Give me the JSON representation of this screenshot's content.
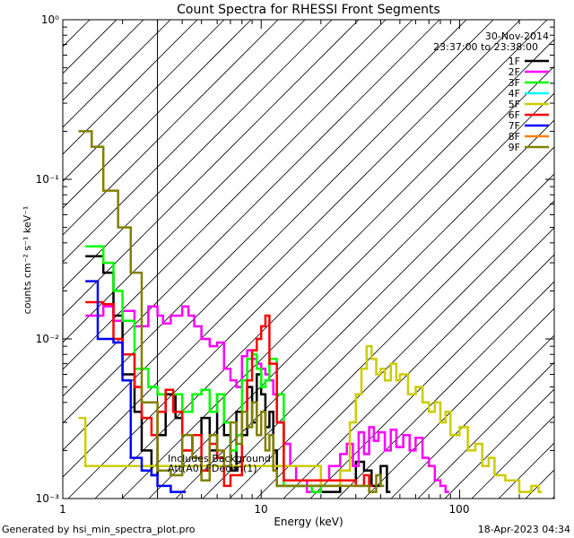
{
  "chart_data": {
    "type": "line",
    "title": "Count Spectra for RHESSI Front Segments",
    "xlabel": "Energy (keV)",
    "ylabel": "counts cm⁻² s⁻¹ keV⁻¹",
    "xscale": "log",
    "yscale": "log",
    "xlim": [
      1,
      300
    ],
    "ylim": [
      0.001,
      1
    ],
    "x_ticks": [
      "1",
      "10",
      "100"
    ],
    "y_ticks": [
      "10⁻³",
      "10⁻²",
      "10⁻¹",
      "10⁰"
    ],
    "legend_position": "top-right",
    "date": "30-Nov-2014",
    "time_range": "23:37:00 to 23:38:00",
    "annotation_lines": [
      "Includes Background",
      "Att(A0) FDecim(1)"
    ],
    "hatched_region": [
      1,
      3
    ],
    "series": [
      {
        "name": "1F",
        "color": "#000000",
        "points": [
          [
            1.3,
            0.033
          ],
          [
            1.6,
            0.026
          ],
          [
            1.8,
            0.014
          ],
          [
            2.0,
            0.006
          ],
          [
            2.3,
            0.0035
          ],
          [
            2.5,
            0.002
          ],
          [
            2.8,
            0.0014
          ],
          [
            3.0,
            0.0025
          ],
          [
            3.3,
            0.0045
          ],
          [
            3.7,
            0.0032
          ],
          [
            4.0,
            0.002
          ],
          [
            4.5,
            0.0025
          ],
          [
            5.0,
            0.0032
          ],
          [
            5.5,
            0.002
          ],
          [
            6.0,
            0.0045
          ],
          [
            6.5,
            0.0025
          ],
          [
            7.0,
            0.0015
          ],
          [
            7.5,
            0.0035
          ],
          [
            8.0,
            0.0025
          ],
          [
            8.5,
            0.005
          ],
          [
            9.0,
            0.003
          ],
          [
            9.5,
            0.006
          ],
          [
            10.0,
            0.0045
          ],
          [
            10.5,
            0.0028
          ],
          [
            11.0,
            0.0035
          ],
          [
            11.5,
            0.002
          ],
          [
            12.0,
            0.0012
          ],
          [
            20.0,
            0.0011
          ],
          [
            25.0,
            0.0013
          ],
          [
            30.0,
            0.0017
          ],
          [
            33.0,
            0.0015
          ],
          [
            36.0,
            0.0012
          ],
          [
            40.0,
            0.0016
          ],
          [
            43.0,
            0.0011
          ]
        ]
      },
      {
        "name": "2F",
        "color": "#ff00ff",
        "points": [
          [
            1.3,
            0.014
          ],
          [
            1.6,
            0.016
          ],
          [
            1.8,
            0.013
          ],
          [
            2.0,
            0.015
          ],
          [
            2.3,
            0.012
          ],
          [
            2.7,
            0.016
          ],
          [
            3.0,
            0.014
          ],
          [
            3.2,
            0.0125
          ],
          [
            3.5,
            0.014
          ],
          [
            4.0,
            0.016
          ],
          [
            4.3,
            0.014
          ],
          [
            4.6,
            0.012
          ],
          [
            5.0,
            0.01
          ],
          [
            5.5,
            0.009
          ],
          [
            6.0,
            0.0095
          ],
          [
            6.5,
            0.0065
          ],
          [
            7.0,
            0.0055
          ],
          [
            7.5,
            0.005
          ],
          [
            8.0,
            0.0078
          ],
          [
            8.5,
            0.0085
          ],
          [
            9.0,
            0.0075
          ],
          [
            9.5,
            0.007
          ],
          [
            10.0,
            0.0065
          ],
          [
            10.5,
            0.006
          ],
          [
            11.0,
            0.0055
          ],
          [
            11.5,
            0.0045
          ],
          [
            12.0,
            0.003
          ],
          [
            13.0,
            0.0022
          ],
          [
            14.0,
            0.0016
          ],
          [
            15.0,
            0.0013
          ],
          [
            17.0,
            0.0011
          ],
          [
            20.0,
            0.0013
          ],
          [
            22.0,
            0.0016
          ],
          [
            25.0,
            0.0019
          ],
          [
            27.0,
            0.0022
          ],
          [
            29.0,
            0.0016
          ],
          [
            31.0,
            0.0026
          ],
          [
            33.0,
            0.0019
          ],
          [
            35.0,
            0.0028
          ],
          [
            37.0,
            0.0023
          ],
          [
            39.0,
            0.0026
          ],
          [
            42.0,
            0.002
          ],
          [
            45.0,
            0.0027
          ],
          [
            48.0,
            0.0021
          ],
          [
            52.0,
            0.0025
          ],
          [
            56.0,
            0.002
          ],
          [
            60.0,
            0.0024
          ],
          [
            65.0,
            0.0018
          ],
          [
            70.0,
            0.0016
          ],
          [
            75.0,
            0.0013
          ],
          [
            80.0,
            0.0012
          ],
          [
            85.0,
            0.0011
          ]
        ]
      },
      {
        "name": "3F",
        "color": "#00ff00",
        "points": [
          [
            1.3,
            0.038
          ],
          [
            1.6,
            0.03
          ],
          [
            1.8,
            0.02
          ],
          [
            2.0,
            0.013
          ],
          [
            2.3,
            0.0065
          ],
          [
            2.7,
            0.005
          ],
          [
            3.0,
            0.0045
          ],
          [
            3.3,
            0.0048
          ],
          [
            3.6,
            0.0045
          ],
          [
            4.0,
            0.0035
          ],
          [
            4.5,
            0.0045
          ],
          [
            5.0,
            0.0048
          ],
          [
            5.5,
            0.0035
          ],
          [
            6.0,
            0.0045
          ],
          [
            6.5,
            0.003
          ],
          [
            7.0,
            0.002
          ],
          [
            7.5,
            0.0025
          ],
          [
            8.0,
            0.0055
          ],
          [
            8.5,
            0.0075
          ],
          [
            9.0,
            0.008
          ],
          [
            9.5,
            0.0065
          ],
          [
            10.0,
            0.005
          ],
          [
            10.5,
            0.0055
          ],
          [
            11.0,
            0.0075
          ],
          [
            12.0,
            0.0045
          ],
          [
            13.0,
            0.0012
          ],
          [
            15.0,
            0.0012
          ],
          [
            18.0,
            0.0011
          ],
          [
            20.0,
            0.0012
          ]
        ]
      },
      {
        "name": "4F",
        "color": "#00ffff",
        "points": []
      },
      {
        "name": "5F",
        "color": "#cccc00",
        "points": [
          [
            1.2,
            0.0032
          ],
          [
            1.3,
            0.0016
          ],
          [
            20.0,
            0.0012
          ],
          [
            25.0,
            0.0015
          ],
          [
            28.0,
            0.003
          ],
          [
            30.0,
            0.0045
          ],
          [
            32.0,
            0.0065
          ],
          [
            34.0,
            0.009
          ],
          [
            36.0,
            0.0075
          ],
          [
            38.0,
            0.006
          ],
          [
            40.0,
            0.0065
          ],
          [
            42.0,
            0.0055
          ],
          [
            45.0,
            0.007
          ],
          [
            48.0,
            0.0055
          ],
          [
            50.0,
            0.006
          ],
          [
            55.0,
            0.0045
          ],
          [
            60.0,
            0.005
          ],
          [
            65.0,
            0.004
          ],
          [
            70.0,
            0.0035
          ],
          [
            75.0,
            0.004
          ],
          [
            80.0,
            0.003
          ],
          [
            85.0,
            0.0035
          ],
          [
            90.0,
            0.0025
          ],
          [
            100.0,
            0.0028
          ],
          [
            110.0,
            0.002
          ],
          [
            120.0,
            0.0022
          ],
          [
            130.0,
            0.0016
          ],
          [
            140.0,
            0.0018
          ],
          [
            150.0,
            0.0014
          ],
          [
            170.0,
            0.0013
          ],
          [
            200.0,
            0.0011
          ],
          [
            230.0,
            0.0012
          ],
          [
            250.0,
            0.0011
          ]
        ]
      },
      {
        "name": "6F",
        "color": "#ff0000",
        "points": [
          [
            1.3,
            0.017
          ],
          [
            1.6,
            0.0165
          ],
          [
            1.8,
            0.01
          ],
          [
            2.0,
            0.008
          ],
          [
            2.3,
            0.005
          ],
          [
            2.5,
            0.0032
          ],
          [
            2.8,
            0.0025
          ],
          [
            3.0,
            0.0035
          ],
          [
            3.3,
            0.0048
          ],
          [
            3.6,
            0.0035
          ],
          [
            4.0,
            0.002
          ],
          [
            4.5,
            0.0025
          ],
          [
            5.0,
            0.0015
          ],
          [
            5.5,
            0.0022
          ],
          [
            6.0,
            0.0018
          ],
          [
            6.5,
            0.0012
          ],
          [
            7.0,
            0.0014
          ],
          [
            8.0,
            0.0035
          ],
          [
            8.5,
            0.0055
          ],
          [
            9.0,
            0.0085
          ],
          [
            9.5,
            0.01
          ],
          [
            10.0,
            0.012
          ],
          [
            10.5,
            0.014
          ],
          [
            11.0,
            0.007
          ],
          [
            12.0,
            0.003
          ],
          [
            13.0,
            0.0013
          ],
          [
            30.0,
            0.0012
          ],
          [
            33.0,
            0.0014
          ],
          [
            35.0,
            0.0012
          ]
        ]
      },
      {
        "name": "7F",
        "color": "#0000ff",
        "points": [
          [
            1.3,
            0.023
          ],
          [
            1.5,
            0.01
          ],
          [
            1.8,
            0.0095
          ],
          [
            2.0,
            0.0055
          ],
          [
            2.2,
            0.0018
          ],
          [
            2.5,
            0.0015
          ],
          [
            2.8,
            0.0014
          ],
          [
            3.0,
            0.0012
          ],
          [
            3.5,
            0.0011
          ],
          [
            4.0,
            0.0011
          ]
        ]
      },
      {
        "name": "8F",
        "color": "#ff8000",
        "points": []
      },
      {
        "name": "9F",
        "color": "#808000",
        "points": [
          [
            1.2,
            0.2
          ],
          [
            1.4,
            0.16
          ],
          [
            1.6,
            0.085
          ],
          [
            1.9,
            0.05
          ],
          [
            2.2,
            0.026
          ],
          [
            2.5,
            0.004
          ],
          [
            3.0,
            0.0015
          ],
          [
            3.5,
            0.0014
          ],
          [
            4.0,
            0.0025
          ],
          [
            4.5,
            0.0018
          ],
          [
            5.0,
            0.0013
          ],
          [
            5.5,
            0.0025
          ],
          [
            6.0,
            0.002
          ],
          [
            6.5,
            0.0016
          ],
          [
            7.0,
            0.003
          ],
          [
            7.5,
            0.0022
          ],
          [
            8.0,
            0.0035
          ],
          [
            8.5,
            0.0028
          ],
          [
            9.0,
            0.004
          ],
          [
            9.5,
            0.0025
          ],
          [
            10.0,
            0.0035
          ],
          [
            10.5,
            0.002
          ],
          [
            11.0,
            0.0025
          ],
          [
            11.5,
            0.0015
          ],
          [
            12.0,
            0.0012
          ],
          [
            35.0,
            0.0011
          ],
          [
            38.0,
            0.0014
          ],
          [
            40.0,
            0.0012
          ]
        ]
      }
    ]
  },
  "footer": {
    "generated_by": "Generated by hsi_min_spectra_plot.pro",
    "timestamp": "18-Apr-2023 04:34"
  }
}
